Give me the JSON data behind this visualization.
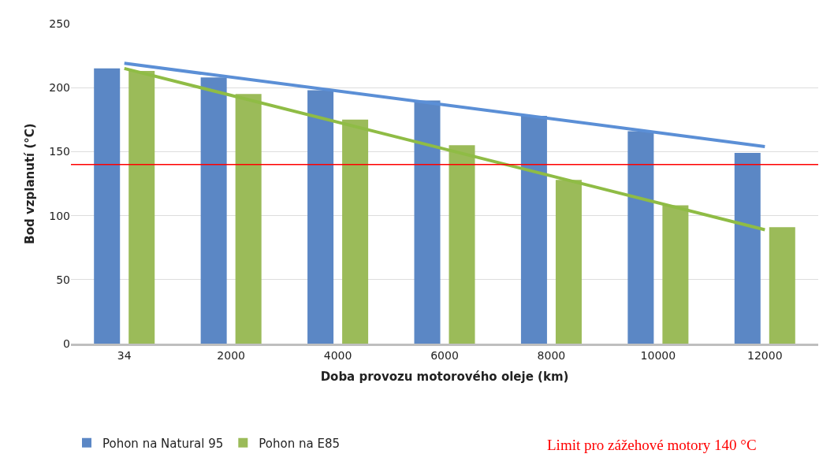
{
  "chart_data": {
    "type": "bar",
    "xlabel": "Doba provozu motorového oleje (km)",
    "ylabel": "Bod vzplanutí (°C)",
    "categories": [
      "34",
      "2000",
      "4000",
      "6000",
      "8000",
      "10000",
      "12000"
    ],
    "series": [
      {
        "name": "Pohon na Natural 95",
        "color": "#5b87c5",
        "values": [
          215,
          208,
          198,
          190,
          178,
          166,
          149
        ]
      },
      {
        "name": "Pohon na E85",
        "color": "#9bbb59",
        "values": [
          213,
          195,
          175,
          155,
          128,
          108,
          91
        ]
      },
      {
        "type": "line",
        "color": "#5b8fd6",
        "x": [
          "34",
          "12000"
        ],
        "values": [
          219,
          154
        ]
      },
      {
        "type": "line",
        "color": "#8fbc45",
        "x": [
          "34",
          "12000"
        ],
        "values": [
          215,
          89
        ]
      }
    ],
    "ylim": [
      0,
      250
    ],
    "yticks": [
      0,
      50,
      100,
      150,
      200,
      250
    ],
    "grid": "y",
    "legend": "bottom",
    "ref_lines": [
      {
        "axis": "y",
        "value": 140,
        "label": "Limit pro zážehové motory 140 °C",
        "color": "#ff0000"
      }
    ]
  }
}
